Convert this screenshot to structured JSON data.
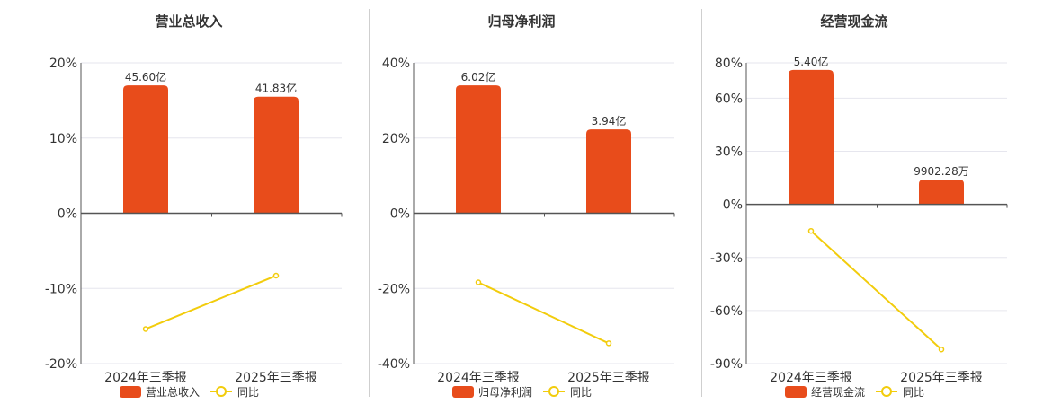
{
  "colors": {
    "bar": "#E84C1B",
    "line": "#F2CC0C",
    "grid": "#E6E6EE",
    "axis": "#555555"
  },
  "chart_data": [
    {
      "type": "bar",
      "title": "营业总收入",
      "categories": [
        "2024年三季报",
        "2025年三季报"
      ],
      "yticks": [
        "20%",
        "10%",
        "0%",
        "-10%",
        "-20%"
      ],
      "ylim": [
        -20,
        20
      ],
      "tick_values": [
        20,
        10,
        0,
        -10,
        -20
      ],
      "series": [
        {
          "name": "营业总收入",
          "type": "bar",
          "values": [
            17,
            15.5
          ],
          "labels": [
            "45.60亿",
            "41.83亿"
          ]
        },
        {
          "name": "同比",
          "type": "line",
          "values": [
            -15.4,
            -8.3
          ]
        }
      ],
      "legend": {
        "position": "bottom",
        "items": [
          "营业总收入",
          "同比"
        ]
      }
    },
    {
      "type": "bar",
      "title": "归母净利润",
      "categories": [
        "2024年三季报",
        "2025年三季报"
      ],
      "yticks": [
        "40%",
        "20%",
        "0%",
        "-20%",
        "-40%"
      ],
      "ylim": [
        -40,
        40
      ],
      "tick_values": [
        40,
        20,
        0,
        -20,
        -40
      ],
      "series": [
        {
          "name": "归母净利润",
          "type": "bar",
          "values": [
            34,
            22.3
          ],
          "labels": [
            "6.02亿",
            "3.94亿"
          ]
        },
        {
          "name": "同比",
          "type": "line",
          "values": [
            -18.4,
            -34.6
          ]
        }
      ],
      "legend": {
        "position": "bottom",
        "items": [
          "归母净利润",
          "同比"
        ]
      }
    },
    {
      "type": "bar",
      "title": "经营现金流",
      "categories": [
        "2024年三季报",
        "2025年三季报"
      ],
      "yticks": [
        "80%",
        "60%",
        "30%",
        "0%",
        "-30%",
        "-60%",
        "-90%"
      ],
      "ylim": [
        -90,
        80
      ],
      "tick_values": [
        80,
        60,
        30,
        0,
        -30,
        -60,
        -90
      ],
      "series": [
        {
          "name": "经营现金流",
          "type": "bar",
          "values": [
            76,
            14
          ],
          "labels": [
            "5.40亿",
            "9902.28万"
          ]
        },
        {
          "name": "同比",
          "type": "line",
          "values": [
            -15,
            -82
          ]
        }
      ],
      "legend": {
        "position": "bottom",
        "items": [
          "经营现金流",
          "同比"
        ]
      }
    }
  ]
}
